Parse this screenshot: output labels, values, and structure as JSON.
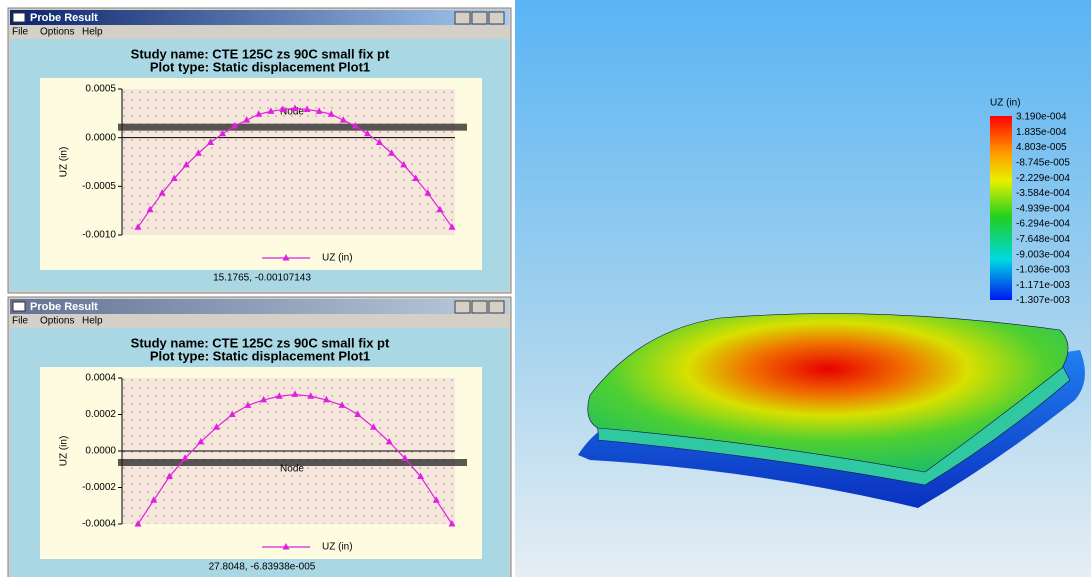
{
  "windows": [
    {
      "title": "Probe Result",
      "menu": [
        "File",
        "Options",
        "Help"
      ],
      "study_name": "Study name: CTE 125C zs 90C small fix pt",
      "plot_type": "Plot type: Static displacement Plot1",
      "chart": {
        "type": "line",
        "y_label": "UZ (in)",
        "x_label": "Node",
        "color": "#e020e0",
        "ylim": [
          -0.001,
          0.0005
        ],
        "yticks": [
          0.0005,
          {
            "value": 0,
            "label": "0.0000"
          },
          -0.0005,
          {
            "value": -0.001,
            "label": "-0.0010"
          }
        ],
        "series_name": "UZ (in)",
        "values": [
          -0.00092,
          -0.00074,
          -0.00057,
          -0.00042,
          -0.00028,
          -0.00016,
          -5e-05,
          4e-05,
          0.00012,
          0.00018,
          0.00024,
          0.00027,
          0.00029,
          0.0003,
          0.00029,
          0.00027,
          0.00024,
          0.00018,
          0.00012,
          4e-05,
          -5e-05,
          -0.00016,
          -0.00028,
          -0.00042,
          -0.00057,
          -0.00074,
          -0.00092
        ],
        "readout": "15.1765, -0.00107143"
      }
    },
    {
      "title": "Probe Result",
      "menu": [
        "File",
        "Options",
        "Help"
      ],
      "study_name": "Study name: CTE 125C zs 90C small fix pt",
      "plot_type": "Plot type: Static displacement Plot1",
      "chart": {
        "type": "line",
        "y_label": "UZ (in)",
        "x_label": "Node",
        "color": "#e020e0",
        "ylim": [
          -0.0004,
          0.0004
        ],
        "yticks": [
          0.0004,
          0.0002,
          {
            "value": 0,
            "label": "0.0000"
          },
          -0.0002,
          -0.0004
        ],
        "series_name": "UZ (in)",
        "values": [
          -0.0004,
          -0.00027,
          -0.00014,
          -4e-05,
          5e-05,
          0.00013,
          0.0002,
          0.00025,
          0.00028,
          0.0003,
          0.00031,
          0.0003,
          0.00028,
          0.00025,
          0.0002,
          0.00013,
          5e-05,
          -4e-05,
          -0.00014,
          -0.00027,
          -0.0004
        ],
        "readout": "27.8048, -6.83938e-005"
      }
    }
  ],
  "color_legend": {
    "title": "UZ (in)",
    "labels": [
      "3.190e-004",
      "1.835e-004",
      "4.803e-005",
      "-8.745e-005",
      "-2.229e-004",
      "-3.584e-004",
      "-4.939e-004",
      "-6.294e-004",
      "-7.648e-004",
      "-9.003e-004",
      "-1.036e-003",
      "-1.171e-003",
      "-1.307e-003"
    ]
  }
}
